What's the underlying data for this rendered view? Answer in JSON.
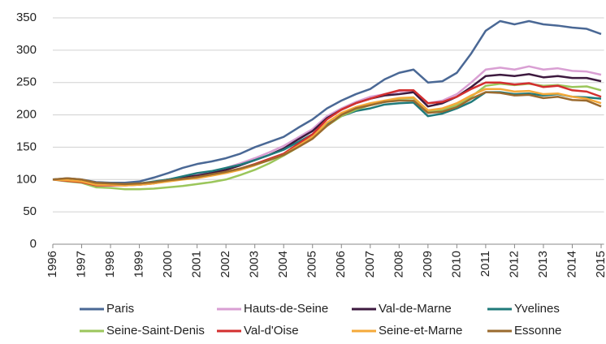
{
  "chart_data": {
    "type": "line",
    "x": [
      1996,
      1996.5,
      1997,
      1997.5,
      1998,
      1998.5,
      1999,
      1999.5,
      2000,
      2000.5,
      2001,
      2001.5,
      2002,
      2002.5,
      2003,
      2003.5,
      2004,
      2004.5,
      2005,
      2005.5,
      2006,
      2006.5,
      2007,
      2007.5,
      2008,
      2008.5,
      2009,
      2009.5,
      2010,
      2010.5,
      2011,
      2011.5,
      2012,
      2012.5,
      2013,
      2013.5,
      2014,
      2014.5,
      2015
    ],
    "series": [
      {
        "name": "Paris",
        "color": "#4a6895",
        "values": [
          100,
          102,
          100,
          96,
          95,
          95,
          97,
          103,
          110,
          118,
          124,
          128,
          133,
          140,
          150,
          158,
          166,
          180,
          193,
          210,
          222,
          232,
          240,
          255,
          265,
          270,
          250,
          252,
          265,
          295,
          330,
          345,
          340,
          345,
          340,
          338,
          335,
          333,
          325
        ]
      },
      {
        "name": "Hauts-de-Seine",
        "color": "#d99fd3",
        "values": [
          100,
          100,
          98,
          93,
          93,
          92,
          93,
          96,
          100,
          104,
          107,
          112,
          118,
          125,
          133,
          142,
          152,
          165,
          178,
          198,
          210,
          220,
          228,
          232,
          236,
          238,
          218,
          222,
          232,
          250,
          270,
          273,
          270,
          275,
          270,
          272,
          268,
          267,
          262
        ]
      },
      {
        "name": "Val-de-Marne",
        "color": "#3d1a3f",
        "values": [
          100,
          100,
          98,
          93,
          93,
          92,
          93,
          96,
          100,
          103,
          106,
          110,
          115,
          122,
          130,
          138,
          148,
          162,
          175,
          195,
          208,
          218,
          225,
          230,
          232,
          235,
          213,
          218,
          228,
          243,
          260,
          262,
          260,
          263,
          258,
          260,
          257,
          257,
          252
        ]
      },
      {
        "name": "Yvelines",
        "color": "#1f7a7a",
        "values": [
          100,
          101,
          99,
          94,
          94,
          93,
          94,
          97,
          100,
          105,
          110,
          113,
          118,
          123,
          130,
          138,
          146,
          158,
          170,
          185,
          198,
          206,
          210,
          216,
          218,
          219,
          198,
          202,
          210,
          220,
          235,
          235,
          232,
          233,
          230,
          232,
          228,
          227,
          225
        ]
      },
      {
        "name": "Seine-Saint-Denis",
        "color": "#9bc65b",
        "values": [
          100,
          97,
          95,
          88,
          87,
          85,
          85,
          86,
          88,
          90,
          93,
          96,
          100,
          107,
          115,
          125,
          137,
          150,
          165,
          183,
          198,
          208,
          215,
          220,
          225,
          226,
          205,
          208,
          215,
          228,
          245,
          248,
          246,
          248,
          245,
          246,
          243,
          244,
          238
        ]
      },
      {
        "name": "Val-d'Oise",
        "color": "#d32f2f",
        "values": [
          100,
          98,
          96,
          91,
          91,
          91,
          92,
          94,
          98,
          101,
          104,
          107,
          112,
          117,
          124,
          132,
          140,
          155,
          170,
          193,
          208,
          218,
          225,
          232,
          238,
          238,
          218,
          220,
          228,
          240,
          250,
          250,
          247,
          249,
          243,
          245,
          238,
          236,
          228
        ]
      },
      {
        "name": "Seine-et-Marne",
        "color": "#f4a93a",
        "values": [
          100,
          99,
          97,
          92,
          92,
          91,
          92,
          94,
          97,
          100,
          102,
          106,
          110,
          115,
          122,
          130,
          138,
          152,
          166,
          188,
          203,
          212,
          218,
          222,
          226,
          227,
          207,
          210,
          218,
          230,
          240,
          240,
          236,
          237,
          232,
          233,
          228,
          225,
          218
        ]
      },
      {
        "name": "Essonne",
        "color": "#9a6a2e",
        "values": [
          100,
          102,
          100,
          95,
          94,
          93,
          94,
          96,
          99,
          101,
          104,
          108,
          112,
          117,
          123,
          130,
          138,
          150,
          163,
          183,
          200,
          210,
          215,
          220,
          222,
          222,
          203,
          205,
          212,
          225,
          235,
          234,
          230,
          231,
          226,
          228,
          223,
          222,
          213
        ]
      }
    ],
    "xlim": [
      1996,
      2015.1
    ],
    "xticks": [
      1996,
      1997,
      1998,
      1999,
      2000,
      2001,
      2002,
      2003,
      2004,
      2005,
      2006,
      2007,
      2008,
      2009,
      2010,
      2011,
      2012,
      2013,
      2014,
      2015
    ],
    "ylim": [
      0,
      350
    ],
    "yticks": [
      0,
      50,
      100,
      150,
      200,
      250,
      300,
      350
    ],
    "grid": true
  }
}
